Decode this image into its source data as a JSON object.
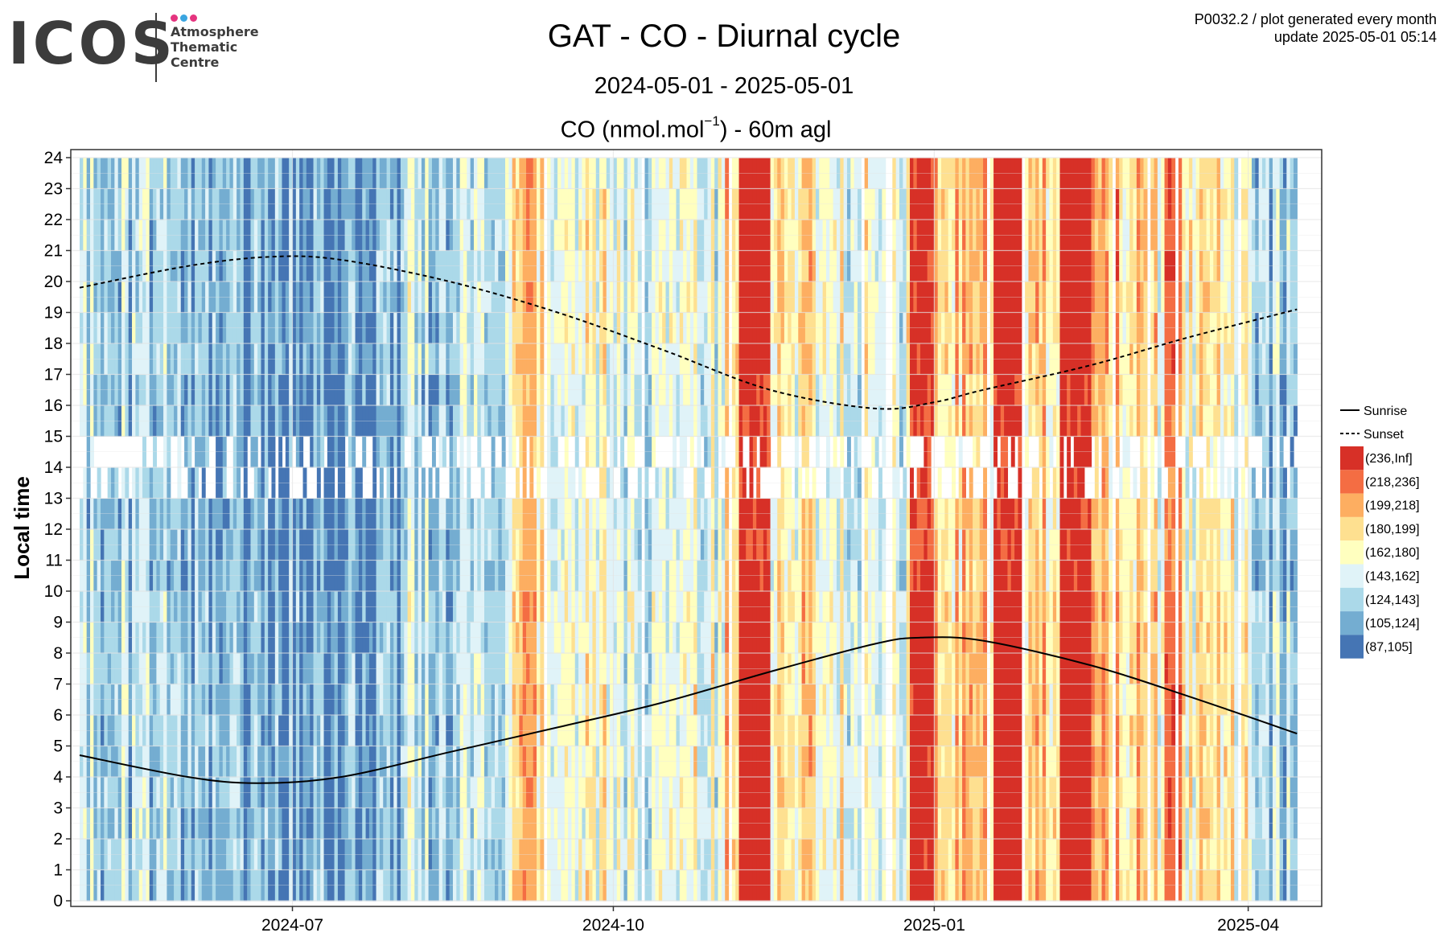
{
  "logo": {
    "brand": "ICOS",
    "lines": [
      "Atmosphere",
      "Thematic",
      "Centre"
    ],
    "dot_colors": [
      "#e5347f",
      "#3aa5e0",
      "#e5347f"
    ]
  },
  "header": {
    "title": "GAT - CO - Diurnal cycle",
    "subtitle": "2024-05-01 - 2025-05-01",
    "unit_main": "CO (nmol.mol",
    "unit_exp": "−1",
    "unit_rest": ") - 60m agl",
    "meta_line1": "P0032.2 / plot generated every month",
    "meta_line2": "update  2025-05-01 05:14"
  },
  "chart_data": {
    "type": "heatmap",
    "x": {
      "start": "2024-05-01",
      "end": "2025-04-15",
      "data_first_day": "2024-05-01",
      "data_last_day": "2025-04-14",
      "ticks": [
        {
          "date": "2024-07-01",
          "label": "2024-07"
        },
        {
          "date": "2024-10-01",
          "label": "2024-10"
        },
        {
          "date": "2025-01-01",
          "label": "2025-01"
        },
        {
          "date": "2025-04-01",
          "label": "2025-04"
        }
      ]
    },
    "y": {
      "label": "Local time",
      "range": [
        0,
        24
      ],
      "ticks": [
        0,
        1,
        2,
        3,
        4,
        5,
        6,
        7,
        8,
        9,
        10,
        11,
        12,
        13,
        14,
        15,
        16,
        17,
        18,
        19,
        20,
        21,
        22,
        23,
        24
      ]
    },
    "grid": true,
    "legend_position": "right",
    "lines": [
      {
        "name": "Sunrise",
        "style": "solid",
        "points": [
          [
            "2024-05-01",
            4.7
          ],
          [
            "2024-06-01",
            4.0
          ],
          [
            "2024-06-21",
            3.8
          ],
          [
            "2024-07-15",
            4.0
          ],
          [
            "2024-08-15",
            4.8
          ],
          [
            "2024-09-15",
            5.6
          ],
          [
            "2024-10-15",
            6.4
          ],
          [
            "2024-11-15",
            7.4
          ],
          [
            "2024-12-15",
            8.3
          ],
          [
            "2024-12-28",
            8.5
          ],
          [
            "2025-01-15",
            8.4
          ],
          [
            "2025-02-15",
            7.6
          ],
          [
            "2025-03-15",
            6.6
          ],
          [
            "2025-04-15",
            5.4
          ]
        ]
      },
      {
        "name": "Sunset",
        "style": "dashed",
        "points": [
          [
            "2024-05-01",
            19.8
          ],
          [
            "2024-06-01",
            20.5
          ],
          [
            "2024-06-25",
            20.8
          ],
          [
            "2024-07-15",
            20.7
          ],
          [
            "2024-08-15",
            20.0
          ],
          [
            "2024-09-15",
            19.0
          ],
          [
            "2024-10-15",
            17.8
          ],
          [
            "2024-11-15",
            16.5
          ],
          [
            "2024-12-15",
            15.9
          ],
          [
            "2025-01-01",
            16.1
          ],
          [
            "2025-01-15",
            16.5
          ],
          [
            "2025-02-15",
            17.3
          ],
          [
            "2025-03-15",
            18.2
          ],
          [
            "2025-04-15",
            19.1
          ]
        ]
      }
    ],
    "color_bins": [
      {
        "label": "(236,Inf]",
        "min": 236,
        "max": null,
        "color": "#d73027"
      },
      {
        "label": "(218,236]",
        "min": 218,
        "max": 236,
        "color": "#f46d43"
      },
      {
        "label": "(199,218]",
        "min": 199,
        "max": 218,
        "color": "#fdae61"
      },
      {
        "label": "(180,199]",
        "min": 180,
        "max": 199,
        "color": "#fee090"
      },
      {
        "label": "(162,180]",
        "min": 162,
        "max": 180,
        "color": "#ffffbf"
      },
      {
        "label": "(143,162]",
        "min": 143,
        "max": 162,
        "color": "#e0f3f8"
      },
      {
        "label": "(124,143]",
        "min": 124,
        "max": 143,
        "color": "#abd9e9"
      },
      {
        "label": "(105,124]",
        "min": 105,
        "max": 124,
        "color": "#74add1"
      },
      {
        "label": "(87,105]",
        "min": 87,
        "max": 105,
        "color": "#4575b4"
      }
    ],
    "approx_daily_co_by_period": [
      {
        "from": "2024-05-01",
        "to": "2024-05-31",
        "co": 135
      },
      {
        "from": "2024-06-01",
        "to": "2024-06-30",
        "co": 118
      },
      {
        "from": "2024-07-01",
        "to": "2024-07-31",
        "co": 110
      },
      {
        "from": "2024-08-01",
        "to": "2024-08-31",
        "co": 140
      },
      {
        "from": "2024-09-01",
        "to": "2024-09-30",
        "co": 175
      },
      {
        "from": "2024-10-01",
        "to": "2024-10-31",
        "co": 160
      },
      {
        "from": "2024-11-01",
        "to": "2024-11-30",
        "co": 185
      },
      {
        "from": "2024-12-01",
        "to": "2024-12-31",
        "co": 165
      },
      {
        "from": "2025-01-01",
        "to": "2025-01-31",
        "co": 200
      },
      {
        "from": "2025-02-01",
        "to": "2025-02-28",
        "co": 195
      },
      {
        "from": "2025-03-01",
        "to": "2025-03-31",
        "co": 175
      },
      {
        "from": "2025-04-01",
        "to": "2025-04-14",
        "co": 135
      }
    ],
    "high_episodes": [
      {
        "from": "2024-11-06",
        "to": "2024-11-14",
        "co": 245
      },
      {
        "from": "2024-12-25",
        "to": "2024-12-31",
        "co": 240
      },
      {
        "from": "2025-01-18",
        "to": "2025-01-25",
        "co": 245
      },
      {
        "from": "2025-02-06",
        "to": "2025-02-14",
        "co": 245
      },
      {
        "from": "2024-09-05",
        "to": "2024-09-08",
        "co": 210
      },
      {
        "from": "2025-03-08",
        "to": "2025-03-12",
        "co": 225
      }
    ],
    "missing_hours": [
      13,
      14
    ]
  }
}
